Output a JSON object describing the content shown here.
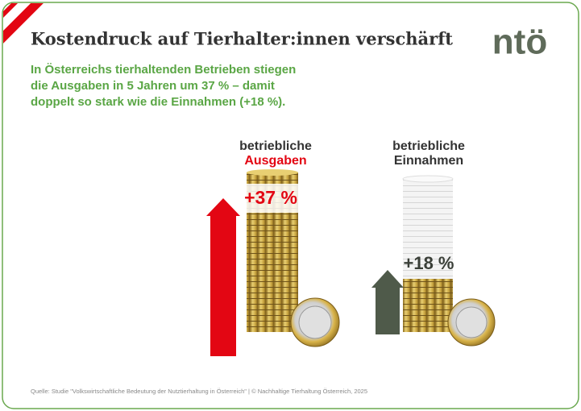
{
  "header": {
    "title": "Kostendruck auf Tierhalter:innen verschärft",
    "subtitle_lines": [
      "In Österreichs tierhaltenden Betrieben stiegen",
      "die Ausgaben in 5 Jahren um 37 % – damit",
      "doppelt so stark wie die Einnahmen (+18 %)."
    ],
    "logo": "ntö"
  },
  "columns": [
    {
      "label_line1": "betriebliche",
      "label_line2": "Ausgaben",
      "change": "+37 %"
    },
    {
      "label_line1": "betriebliche",
      "label_line2": "Einnahmen",
      "change": "+18 %"
    }
  ],
  "footer": {
    "source": "Quelle:  Studie \"Volkswirtschaftliche Bedeutung der Nutztierhaltung in Österreich\"  |  © Nachhaltige Tierhaltung Österreich, 2025"
  }
}
